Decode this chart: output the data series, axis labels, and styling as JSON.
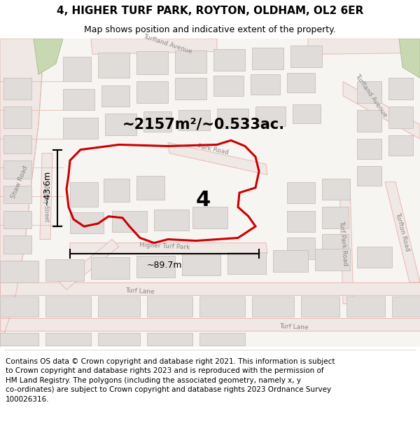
{
  "title_line1": "4, HIGHER TURF PARK, ROYTON, OLDHAM, OL2 6ER",
  "title_line2": "Map shows position and indicative extent of the property.",
  "area_text": "~2157m²/~0.533ac.",
  "dim_width": "~89.7m",
  "dim_height": "~43.6m",
  "plot_number": "4",
  "footer_line1": "Contains OS data © Crown copyright and database right 2021. This information is subject to Crown copyright and database rights 2023 and is reproduced with the permission of",
  "footer_line2": "HM Land Registry. The polygons (including the associated geometry, namely x, y co-ordinates) are subject to Crown copyright and database rights 2023 Ordnance Survey 100026316.",
  "map_bg": "#f7f5f2",
  "road_fill": "#f0e8e4",
  "road_edge": "#e8b8b0",
  "building_fill": "#e0dcda",
  "building_edge": "#c8c0bc",
  "plot_color": "#cc0000",
  "green_fill": "#c8d8b0",
  "green_edge": "#a8b890",
  "title_fontsize": 11,
  "subtitle_fontsize": 9,
  "footer_fontsize": 7.5,
  "road_label_color": "#888888",
  "road_label_size": 6.5
}
